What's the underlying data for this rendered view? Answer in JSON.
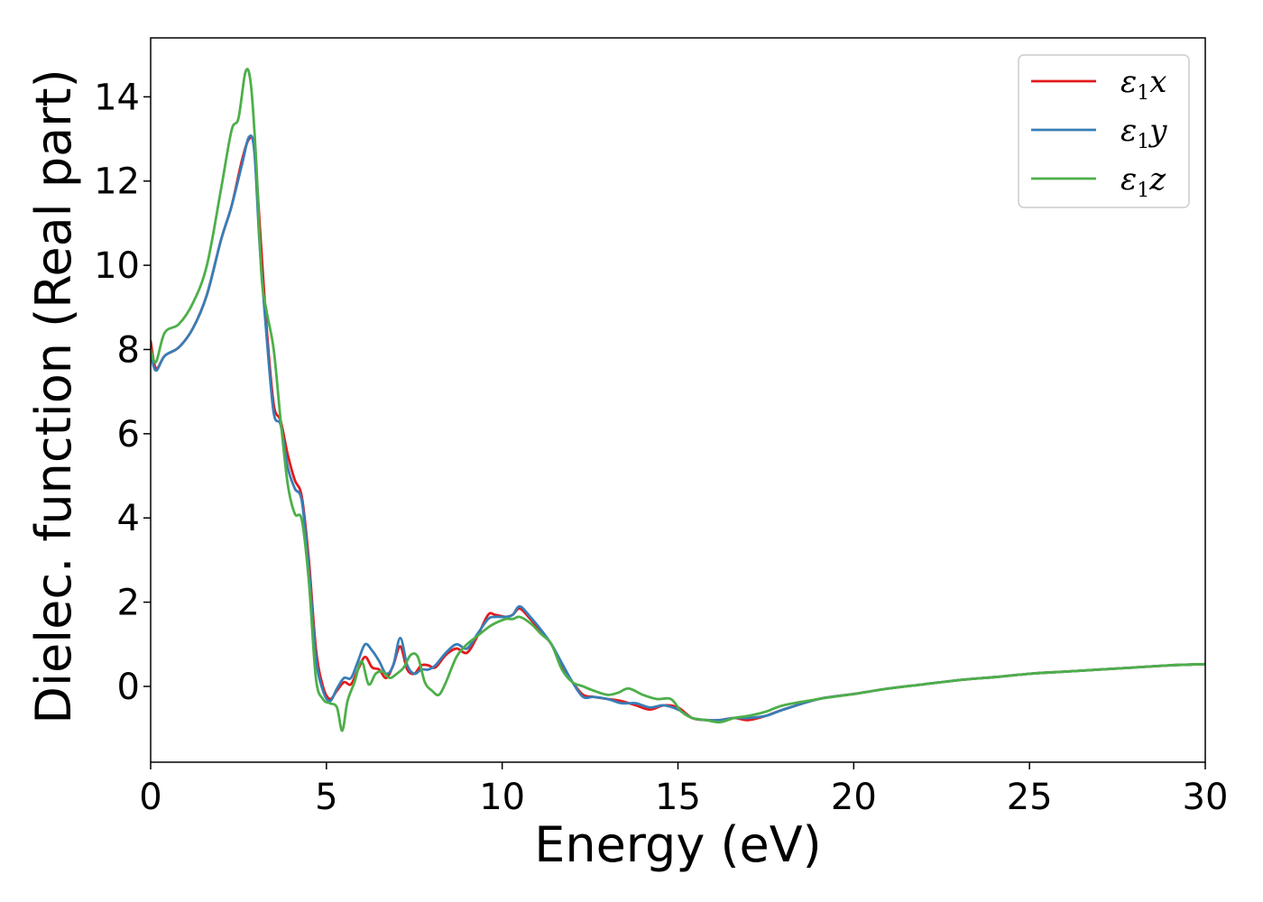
{
  "chart_data": {
    "type": "line",
    "title": "",
    "xlabel": "Energy (eV)",
    "ylabel": "Dielec. function (Real part)",
    "xlim": [
      0,
      30
    ],
    "ylim": [
      -1.8,
      15.4
    ],
    "xticks": [
      0,
      5,
      10,
      15,
      20,
      25,
      30
    ],
    "yticks": [
      0,
      2,
      4,
      6,
      8,
      10,
      12,
      14
    ],
    "grid": false,
    "legend_position": "top-right",
    "series": [
      {
        "name": "ε1x",
        "label_main": "ε",
        "label_sub": "1",
        "label_tail": "x",
        "color": "#e41a1c",
        "x": [
          0,
          0.15,
          0.4,
          0.8,
          1.2,
          1.6,
          2.0,
          2.3,
          2.6,
          2.8,
          2.95,
          3.1,
          3.3,
          3.5,
          3.7,
          3.9,
          4.1,
          4.3,
          4.5,
          4.7,
          4.9,
          5.1,
          5.3,
          5.5,
          5.7,
          5.9,
          6.1,
          6.3,
          6.5,
          6.7,
          6.9,
          7.1,
          7.3,
          7.5,
          7.7,
          7.9,
          8.1,
          8.4,
          8.7,
          9.0,
          9.3,
          9.6,
          9.8,
          10.1,
          10.3,
          10.5,
          10.8,
          11.1,
          11.4,
          11.7,
          12.0,
          12.3,
          12.6,
          13.0,
          13.4,
          13.8,
          14.2,
          14.6,
          15.0,
          15.4,
          15.8,
          16.2,
          16.6,
          17.0,
          17.5,
          18.0,
          19.0,
          20.0,
          21.0,
          22.0,
          23.0,
          24.0,
          25.0,
          26.0,
          27.0,
          28.0,
          29.0,
          30.0
        ],
        "y": [
          8.2,
          7.55,
          7.85,
          8.05,
          8.5,
          9.3,
          10.6,
          11.4,
          12.5,
          13.0,
          12.8,
          11.0,
          8.5,
          6.7,
          6.3,
          5.5,
          4.9,
          4.5,
          3.0,
          0.9,
          0.0,
          -0.3,
          -0.1,
          0.1,
          0.05,
          0.4,
          0.7,
          0.45,
          0.4,
          0.2,
          0.5,
          0.95,
          0.4,
          0.3,
          0.5,
          0.5,
          0.45,
          0.75,
          0.9,
          0.8,
          1.2,
          1.7,
          1.7,
          1.65,
          1.7,
          1.85,
          1.6,
          1.3,
          1.0,
          0.5,
          0.1,
          -0.2,
          -0.25,
          -0.3,
          -0.35,
          -0.45,
          -0.55,
          -0.45,
          -0.5,
          -0.75,
          -0.8,
          -0.8,
          -0.75,
          -0.8,
          -0.7,
          -0.55,
          -0.3,
          -0.18,
          -0.05,
          0.05,
          0.15,
          0.22,
          0.3,
          0.35,
          0.4,
          0.45,
          0.5,
          0.53
        ]
      },
      {
        "name": "ε1y",
        "label_main": "ε",
        "label_sub": "1",
        "label_tail": "y",
        "color": "#377eb8",
        "x": [
          0,
          0.15,
          0.4,
          0.8,
          1.2,
          1.6,
          2.0,
          2.3,
          2.6,
          2.8,
          2.95,
          3.1,
          3.3,
          3.5,
          3.7,
          3.9,
          4.1,
          4.3,
          4.5,
          4.7,
          4.9,
          5.1,
          5.3,
          5.5,
          5.7,
          5.9,
          6.1,
          6.3,
          6.5,
          6.7,
          6.9,
          7.1,
          7.3,
          7.5,
          7.7,
          7.9,
          8.1,
          8.4,
          8.7,
          9.0,
          9.3,
          9.6,
          9.8,
          10.1,
          10.3,
          10.5,
          10.8,
          11.1,
          11.4,
          11.7,
          12.0,
          12.3,
          12.6,
          13.0,
          13.4,
          13.8,
          14.2,
          14.6,
          15.0,
          15.4,
          15.8,
          16.2,
          16.6,
          17.0,
          17.5,
          18.0,
          19.0,
          20.0,
          21.0,
          22.0,
          23.0,
          24.0,
          25.0,
          26.0,
          27.0,
          28.0,
          29.0,
          30.0
        ],
        "y": [
          7.9,
          7.5,
          7.85,
          8.05,
          8.5,
          9.3,
          10.6,
          11.4,
          12.4,
          13.05,
          12.7,
          10.5,
          8.3,
          6.5,
          6.2,
          5.2,
          4.7,
          4.4,
          2.8,
          0.7,
          -0.1,
          -0.35,
          -0.05,
          0.2,
          0.2,
          0.6,
          1.0,
          0.85,
          0.6,
          0.3,
          0.5,
          1.15,
          0.5,
          0.3,
          0.4,
          0.4,
          0.5,
          0.8,
          1.0,
          0.9,
          1.25,
          1.6,
          1.65,
          1.65,
          1.7,
          1.9,
          1.65,
          1.35,
          1.0,
          0.55,
          0.1,
          -0.25,
          -0.25,
          -0.3,
          -0.4,
          -0.4,
          -0.5,
          -0.45,
          -0.55,
          -0.75,
          -0.8,
          -0.8,
          -0.75,
          -0.75,
          -0.7,
          -0.55,
          -0.3,
          -0.18,
          -0.05,
          0.05,
          0.15,
          0.22,
          0.3,
          0.35,
          0.4,
          0.45,
          0.5,
          0.53
        ]
      },
      {
        "name": "ε1z",
        "label_main": "ε",
        "label_sub": "1",
        "label_tail": "z",
        "color": "#4daf4a",
        "x": [
          0,
          0.15,
          0.4,
          0.8,
          1.2,
          1.6,
          2.0,
          2.3,
          2.5,
          2.7,
          2.85,
          3.0,
          3.15,
          3.3,
          3.5,
          3.7,
          3.9,
          4.1,
          4.3,
          4.5,
          4.7,
          4.9,
          5.1,
          5.3,
          5.45,
          5.6,
          5.8,
          6.0,
          6.2,
          6.4,
          6.6,
          6.8,
          7.0,
          7.2,
          7.4,
          7.6,
          7.8,
          8.0,
          8.2,
          8.4,
          8.7,
          9.0,
          9.3,
          9.6,
          9.8,
          10.1,
          10.3,
          10.5,
          10.8,
          11.1,
          11.4,
          11.7,
          12.0,
          12.3,
          12.6,
          13.0,
          13.3,
          13.6,
          14.0,
          14.4,
          14.8,
          15.1,
          15.4,
          15.8,
          16.2,
          16.6,
          17.0,
          17.5,
          18.0,
          19.0,
          20.0,
          21.0,
          22.0,
          23.0,
          24.0,
          25.0,
          26.0,
          27.0,
          28.0,
          29.0,
          30.0
        ],
        "y": [
          8.0,
          7.7,
          8.4,
          8.6,
          9.1,
          10.0,
          11.8,
          13.2,
          13.5,
          14.6,
          14.3,
          12.5,
          9.8,
          8.9,
          8.0,
          6.3,
          4.8,
          4.1,
          3.95,
          2.5,
          0.2,
          -0.3,
          -0.4,
          -0.5,
          -1.05,
          -0.35,
          0.1,
          0.6,
          0.05,
          0.3,
          0.35,
          0.2,
          0.3,
          0.45,
          0.75,
          0.7,
          0.1,
          -0.1,
          -0.2,
          0.1,
          0.7,
          1.0,
          1.2,
          1.4,
          1.5,
          1.6,
          1.6,
          1.65,
          1.5,
          1.25,
          1.0,
          0.4,
          0.1,
          0.0,
          -0.1,
          -0.2,
          -0.15,
          -0.05,
          -0.2,
          -0.3,
          -0.3,
          -0.6,
          -0.75,
          -0.8,
          -0.85,
          -0.75,
          -0.7,
          -0.6,
          -0.45,
          -0.3,
          -0.18,
          -0.05,
          0.05,
          0.15,
          0.22,
          0.3,
          0.35,
          0.4,
          0.45,
          0.5,
          0.53
        ]
      }
    ]
  }
}
